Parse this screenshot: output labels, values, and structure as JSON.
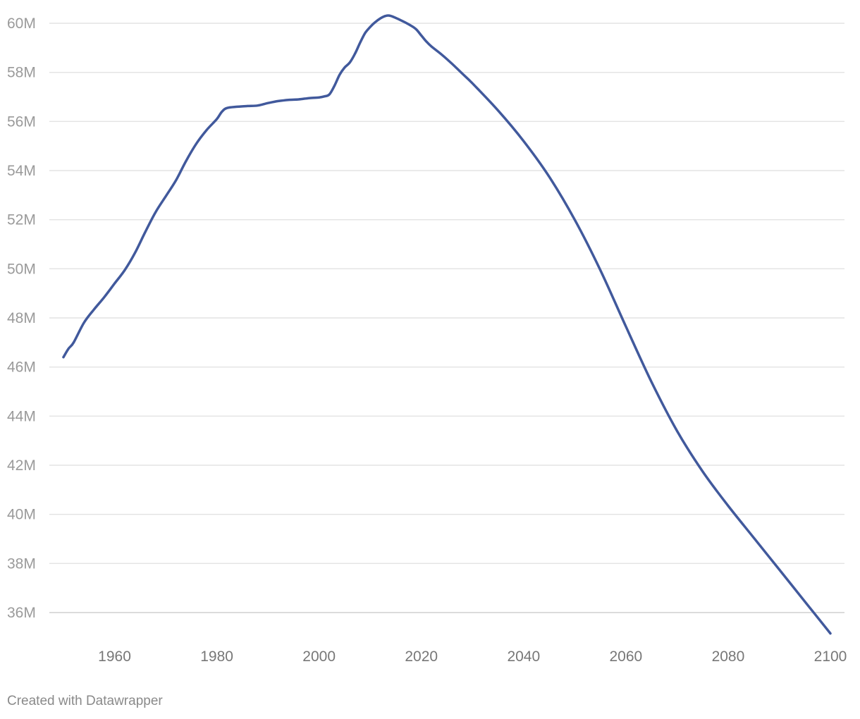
{
  "chart_data": {
    "type": "line",
    "title": "",
    "xlabel": "",
    "ylabel": "",
    "xlim": [
      1950,
      2100
    ],
    "ylim": [
      36,
      60
    ],
    "grid": true,
    "y_ticks": [
      {
        "value": 36,
        "label": "36M"
      },
      {
        "value": 38,
        "label": "38M"
      },
      {
        "value": 40,
        "label": "40M"
      },
      {
        "value": 42,
        "label": "42M"
      },
      {
        "value": 44,
        "label": "44M"
      },
      {
        "value": 46,
        "label": "46M"
      },
      {
        "value": 48,
        "label": "48M"
      },
      {
        "value": 50,
        "label": "50M"
      },
      {
        "value": 52,
        "label": "52M"
      },
      {
        "value": 54,
        "label": "54M"
      },
      {
        "value": 56,
        "label": "56M"
      },
      {
        "value": 58,
        "label": "58M"
      },
      {
        "value": 60,
        "label": "60M"
      }
    ],
    "x_ticks": [
      {
        "value": 1960,
        "label": "1960"
      },
      {
        "value": 1980,
        "label": "1980"
      },
      {
        "value": 2000,
        "label": "2000"
      },
      {
        "value": 2020,
        "label": "2020"
      },
      {
        "value": 2040,
        "label": "2040"
      },
      {
        "value": 2060,
        "label": "2060"
      },
      {
        "value": 2080,
        "label": "2080"
      },
      {
        "value": 2100,
        "label": "2100"
      }
    ],
    "series": [
      {
        "color": "#41599c",
        "x": [
          1950,
          1951,
          1952,
          1954,
          1956,
          1958,
          1960,
          1962,
          1964,
          1966,
          1968,
          1970,
          1972,
          1974,
          1976,
          1978,
          1980,
          1981,
          1982,
          1984,
          1986,
          1988,
          1990,
          1992,
          1994,
          1996,
          1998,
          2000,
          2001,
          2002,
          2003,
          2004,
          2005,
          2006,
          2007,
          2008,
          2009,
          2010,
          2011,
          2012,
          2013,
          2014,
          2016,
          2018,
          2019,
          2020,
          2021,
          2022,
          2024,
          2026,
          2028,
          2030,
          2035,
          2040,
          2045,
          2050,
          2055,
          2060,
          2065,
          2070,
          2075,
          2080,
          2085,
          2090,
          2095,
          2100
        ],
        "y": [
          46.4,
          46.75,
          47.0,
          47.8,
          48.35,
          48.85,
          49.4,
          49.95,
          50.65,
          51.5,
          52.3,
          52.95,
          53.6,
          54.4,
          55.1,
          55.65,
          56.1,
          56.4,
          56.55,
          56.6,
          56.63,
          56.65,
          56.75,
          56.83,
          56.88,
          56.9,
          56.95,
          56.98,
          57.02,
          57.1,
          57.45,
          57.9,
          58.2,
          58.4,
          58.75,
          59.2,
          59.6,
          59.85,
          60.05,
          60.2,
          60.3,
          60.3,
          60.12,
          59.9,
          59.75,
          59.5,
          59.25,
          59.05,
          58.72,
          58.35,
          57.95,
          57.55,
          56.45,
          55.2,
          53.75,
          52.0,
          49.95,
          47.65,
          45.4,
          43.4,
          41.75,
          40.35,
          39.05,
          37.75,
          36.45,
          35.15
        ]
      }
    ]
  },
  "footer": {
    "credit": "Created with Datawrapper"
  }
}
